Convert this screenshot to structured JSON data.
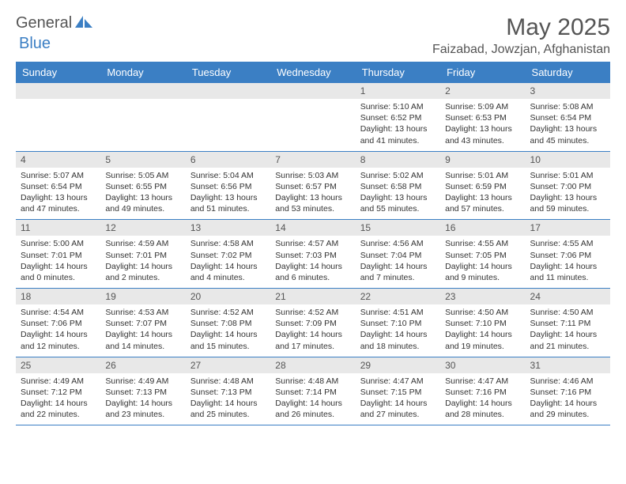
{
  "logo": {
    "text1": "General",
    "text2": "Blue"
  },
  "title": "May 2025",
  "location": "Faizabad, Jowzjan, Afghanistan",
  "colors": {
    "header_bg": "#3b7fc4",
    "header_text": "#ffffff",
    "daynum_bg": "#e8e8e8",
    "text_dark": "#555555",
    "detail_text": "#333333",
    "page_bg": "#ffffff"
  },
  "day_names": [
    "Sunday",
    "Monday",
    "Tuesday",
    "Wednesday",
    "Thursday",
    "Friday",
    "Saturday"
  ],
  "weeks": [
    [
      null,
      null,
      null,
      null,
      {
        "n": "1",
        "sr": "5:10 AM",
        "ss": "6:52 PM",
        "dl": "13 hours and 41 minutes."
      },
      {
        "n": "2",
        "sr": "5:09 AM",
        "ss": "6:53 PM",
        "dl": "13 hours and 43 minutes."
      },
      {
        "n": "3",
        "sr": "5:08 AM",
        "ss": "6:54 PM",
        "dl": "13 hours and 45 minutes."
      }
    ],
    [
      {
        "n": "4",
        "sr": "5:07 AM",
        "ss": "6:54 PM",
        "dl": "13 hours and 47 minutes."
      },
      {
        "n": "5",
        "sr": "5:05 AM",
        "ss": "6:55 PM",
        "dl": "13 hours and 49 minutes."
      },
      {
        "n": "6",
        "sr": "5:04 AM",
        "ss": "6:56 PM",
        "dl": "13 hours and 51 minutes."
      },
      {
        "n": "7",
        "sr": "5:03 AM",
        "ss": "6:57 PM",
        "dl": "13 hours and 53 minutes."
      },
      {
        "n": "8",
        "sr": "5:02 AM",
        "ss": "6:58 PM",
        "dl": "13 hours and 55 minutes."
      },
      {
        "n": "9",
        "sr": "5:01 AM",
        "ss": "6:59 PM",
        "dl": "13 hours and 57 minutes."
      },
      {
        "n": "10",
        "sr": "5:01 AM",
        "ss": "7:00 PM",
        "dl": "13 hours and 59 minutes."
      }
    ],
    [
      {
        "n": "11",
        "sr": "5:00 AM",
        "ss": "7:01 PM",
        "dl": "14 hours and 0 minutes."
      },
      {
        "n": "12",
        "sr": "4:59 AM",
        "ss": "7:01 PM",
        "dl": "14 hours and 2 minutes."
      },
      {
        "n": "13",
        "sr": "4:58 AM",
        "ss": "7:02 PM",
        "dl": "14 hours and 4 minutes."
      },
      {
        "n": "14",
        "sr": "4:57 AM",
        "ss": "7:03 PM",
        "dl": "14 hours and 6 minutes."
      },
      {
        "n": "15",
        "sr": "4:56 AM",
        "ss": "7:04 PM",
        "dl": "14 hours and 7 minutes."
      },
      {
        "n": "16",
        "sr": "4:55 AM",
        "ss": "7:05 PM",
        "dl": "14 hours and 9 minutes."
      },
      {
        "n": "17",
        "sr": "4:55 AM",
        "ss": "7:06 PM",
        "dl": "14 hours and 11 minutes."
      }
    ],
    [
      {
        "n": "18",
        "sr": "4:54 AM",
        "ss": "7:06 PM",
        "dl": "14 hours and 12 minutes."
      },
      {
        "n": "19",
        "sr": "4:53 AM",
        "ss": "7:07 PM",
        "dl": "14 hours and 14 minutes."
      },
      {
        "n": "20",
        "sr": "4:52 AM",
        "ss": "7:08 PM",
        "dl": "14 hours and 15 minutes."
      },
      {
        "n": "21",
        "sr": "4:52 AM",
        "ss": "7:09 PM",
        "dl": "14 hours and 17 minutes."
      },
      {
        "n": "22",
        "sr": "4:51 AM",
        "ss": "7:10 PM",
        "dl": "14 hours and 18 minutes."
      },
      {
        "n": "23",
        "sr": "4:50 AM",
        "ss": "7:10 PM",
        "dl": "14 hours and 19 minutes."
      },
      {
        "n": "24",
        "sr": "4:50 AM",
        "ss": "7:11 PM",
        "dl": "14 hours and 21 minutes."
      }
    ],
    [
      {
        "n": "25",
        "sr": "4:49 AM",
        "ss": "7:12 PM",
        "dl": "14 hours and 22 minutes."
      },
      {
        "n": "26",
        "sr": "4:49 AM",
        "ss": "7:13 PM",
        "dl": "14 hours and 23 minutes."
      },
      {
        "n": "27",
        "sr": "4:48 AM",
        "ss": "7:13 PM",
        "dl": "14 hours and 25 minutes."
      },
      {
        "n": "28",
        "sr": "4:48 AM",
        "ss": "7:14 PM",
        "dl": "14 hours and 26 minutes."
      },
      {
        "n": "29",
        "sr": "4:47 AM",
        "ss": "7:15 PM",
        "dl": "14 hours and 27 minutes."
      },
      {
        "n": "30",
        "sr": "4:47 AM",
        "ss": "7:16 PM",
        "dl": "14 hours and 28 minutes."
      },
      {
        "n": "31",
        "sr": "4:46 AM",
        "ss": "7:16 PM",
        "dl": "14 hours and 29 minutes."
      }
    ]
  ],
  "labels": {
    "sunrise": "Sunrise:",
    "sunset": "Sunset:",
    "daylight": "Daylight:"
  }
}
